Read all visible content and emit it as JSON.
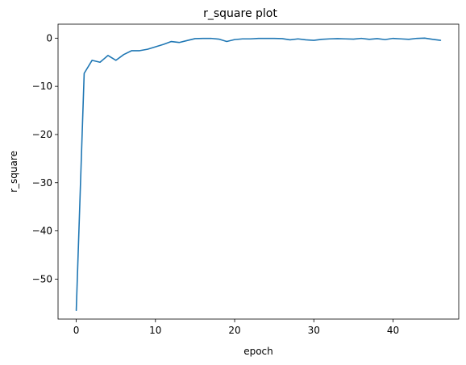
{
  "chart_data": {
    "type": "line",
    "title": "r_square plot",
    "xlabel": "epoch",
    "ylabel": "r_square",
    "xlim": [
      -2.3,
      48.3
    ],
    "ylim": [
      -58.3,
      2.9
    ],
    "xticks": [
      0,
      10,
      20,
      30,
      40
    ],
    "yticks": [
      0,
      -10,
      -20,
      -30,
      -40,
      -50
    ],
    "ytick_labels": [
      "0",
      "−10",
      "−20",
      "−30",
      "−40",
      "−50"
    ],
    "grid": false,
    "series": [
      {
        "color": "#1f77b4",
        "x": [
          0,
          1,
          2,
          3,
          4,
          5,
          6,
          7,
          8,
          9,
          10,
          11,
          12,
          13,
          14,
          15,
          16,
          17,
          18,
          19,
          20,
          21,
          22,
          23,
          24,
          25,
          26,
          27,
          28,
          29,
          30,
          31,
          32,
          33,
          34,
          35,
          36,
          37,
          38,
          39,
          40,
          41,
          42,
          43,
          44,
          45,
          46
        ],
        "y": [
          -56.5,
          -7.3,
          -4.6,
          -5.0,
          -3.6,
          -4.6,
          -3.4,
          -2.6,
          -2.6,
          -2.3,
          -1.8,
          -1.3,
          -0.7,
          -0.9,
          -0.5,
          -0.1,
          -0.05,
          -0.05,
          -0.2,
          -0.7,
          -0.3,
          -0.15,
          -0.15,
          -0.05,
          -0.05,
          -0.05,
          -0.1,
          -0.35,
          -0.15,
          -0.35,
          -0.45,
          -0.25,
          -0.15,
          -0.1,
          -0.15,
          -0.2,
          -0.05,
          -0.25,
          -0.1,
          -0.3,
          -0.05,
          -0.15,
          -0.25,
          -0.05,
          0.0,
          -0.25,
          -0.45
        ]
      }
    ]
  }
}
